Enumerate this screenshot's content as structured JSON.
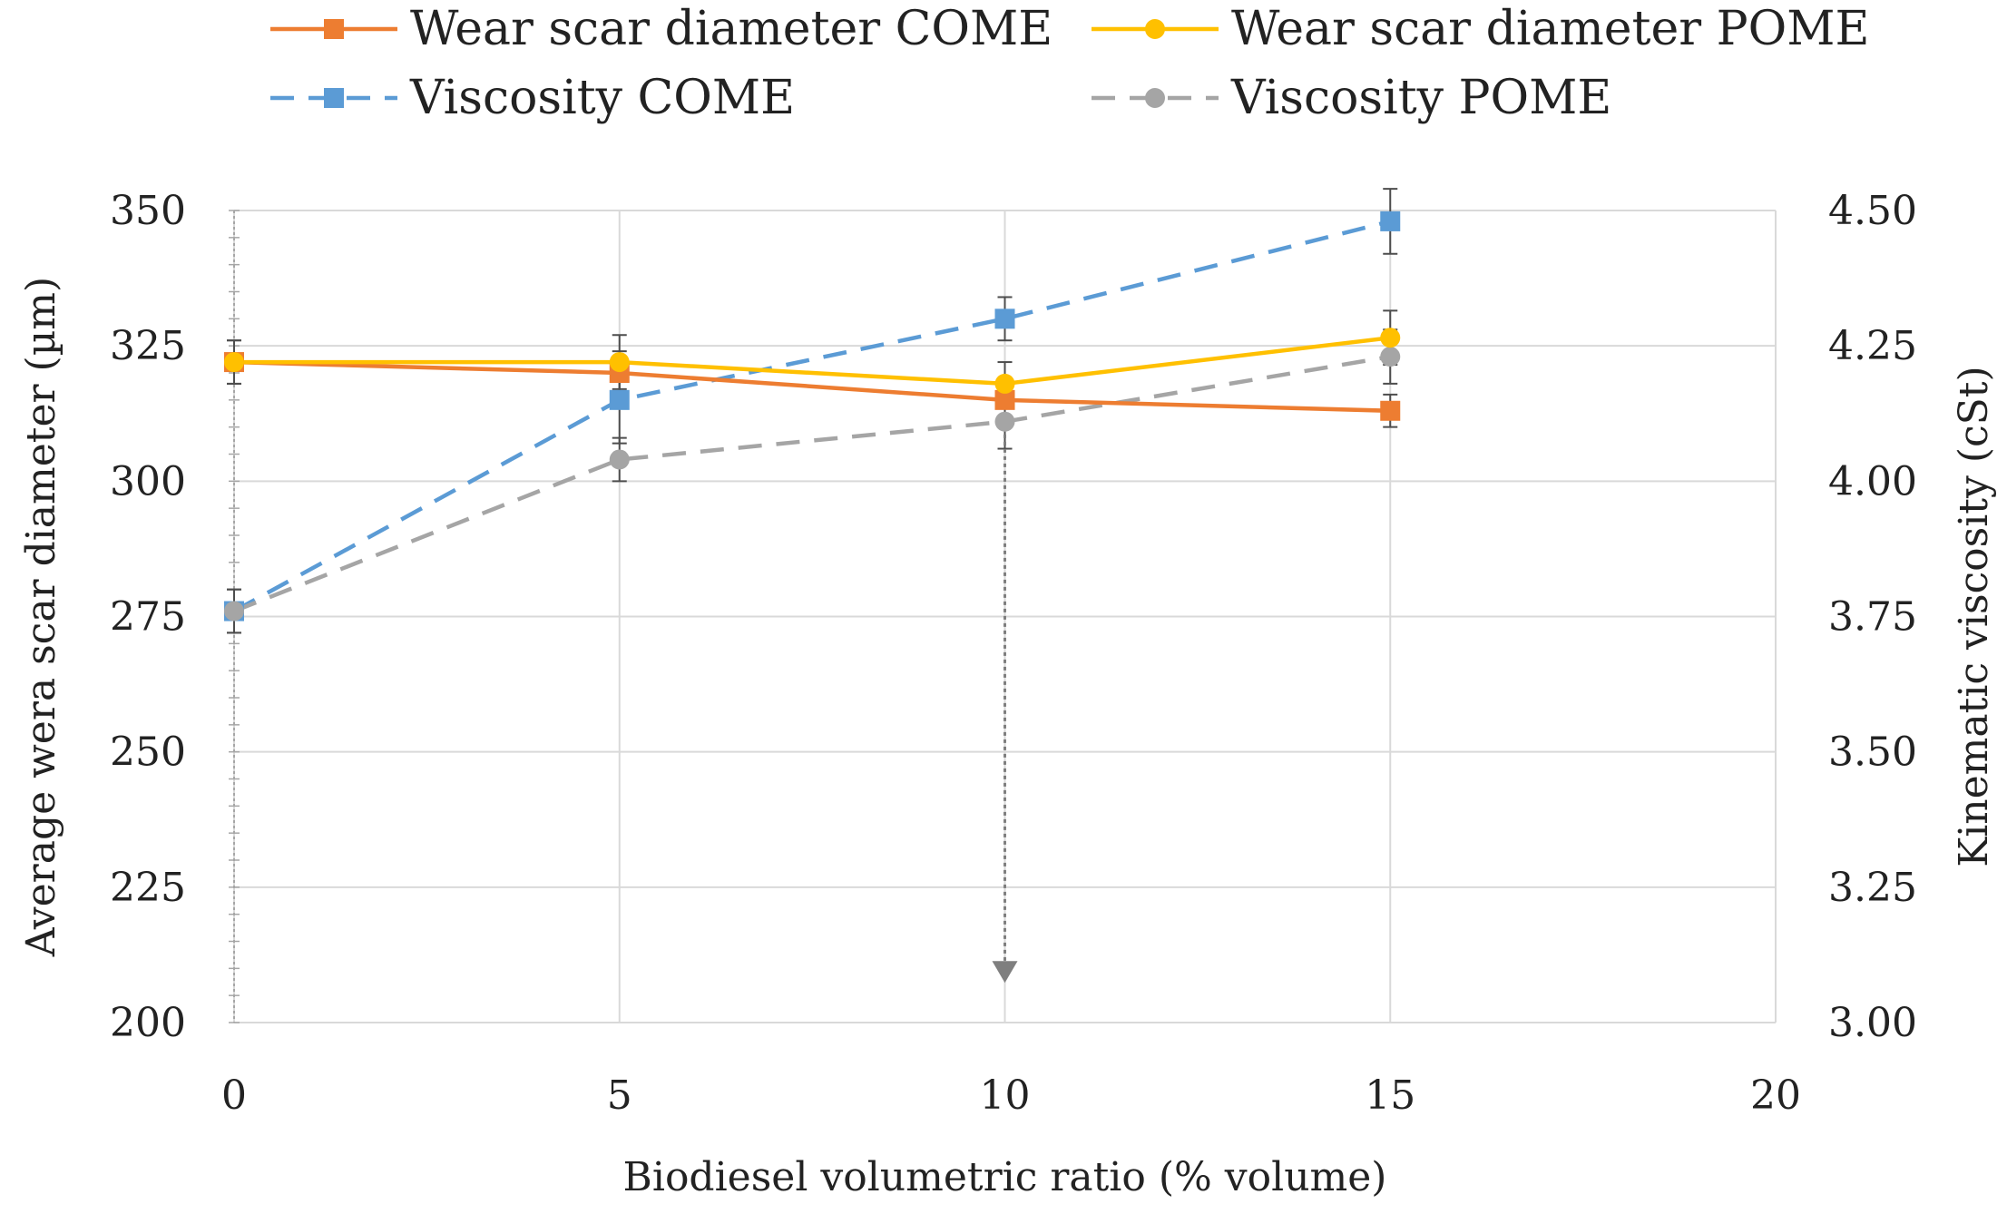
{
  "chart_data": {
    "type": "line",
    "title": "",
    "xlabel": "Biodiesel volumetric ratio (% volume)",
    "ylabel": "Average wera scar diameter (µm)",
    "y2label": "Kinematic viscosity (cSt)",
    "xlim": [
      0,
      20
    ],
    "ylim": [
      200,
      350
    ],
    "y2lim": [
      3.0,
      4.5
    ],
    "x_ticks": [
      "0",
      "5",
      "10",
      "15",
      "20"
    ],
    "y_ticks": [
      "200",
      "225",
      "250",
      "275",
      "300",
      "325",
      "350"
    ],
    "y2_ticks": [
      "3.00",
      "3.25",
      "3.50",
      "3.75",
      "4.00",
      "4.25",
      "4.50"
    ],
    "grid": true,
    "legend_position": "top",
    "series": [
      {
        "name": "Wear scar diameter COME",
        "axis": "left",
        "color": "#ED7D31",
        "style": "solid",
        "marker": "square",
        "x": [
          0,
          5,
          10,
          15
        ],
        "values": [
          322,
          320,
          315,
          313
        ],
        "errors": [
          4,
          4,
          4,
          3
        ]
      },
      {
        "name": "Wear scar diameter POME",
        "axis": "left",
        "color": "#FFC000",
        "style": "solid",
        "marker": "circle",
        "x": [
          0,
          5,
          10,
          15
        ],
        "values": [
          322,
          322,
          318,
          326.5
        ],
        "errors": [
          4,
          5,
          4,
          5
        ]
      },
      {
        "name": "Viscosity COME",
        "axis": "right",
        "color": "#5B9BD5",
        "style": "dashed",
        "marker": "square",
        "x": [
          0,
          5,
          10,
          15
        ],
        "values": [
          3.76,
          4.15,
          4.3,
          4.48
        ],
        "errors": [
          0.04,
          0.08,
          0.04,
          0.06
        ]
      },
      {
        "name": "Viscosity POME",
        "axis": "right",
        "color": "#A5A5A5",
        "style": "dashed",
        "marker": "circle",
        "x": [
          0,
          5,
          10,
          15
        ],
        "values": [
          3.76,
          4.04,
          4.11,
          4.23
        ],
        "errors": [
          0.04,
          0.04,
          0.05,
          0.05
        ]
      }
    ],
    "annotations": [
      {
        "type": "dotted-arrow",
        "x": 10,
        "from_y": 318,
        "to_y": 208,
        "color": "#7F7F7F"
      }
    ]
  }
}
